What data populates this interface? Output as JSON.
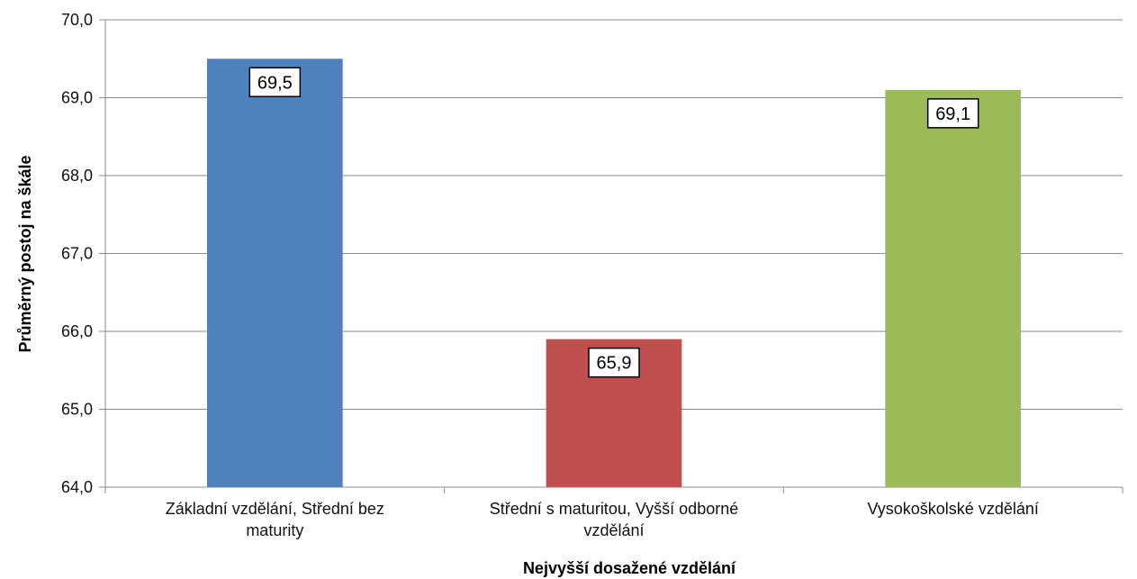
{
  "chart_data": {
    "type": "bar",
    "title": "",
    "xlabel": "Nejvyšší dosažené vzdělání",
    "ylabel": "Průměrný postoj na škále",
    "ylim": [
      64.0,
      70.0
    ],
    "yticks": [
      "64,0",
      "65,0",
      "66,0",
      "67,0",
      "68,0",
      "69,0",
      "70,0"
    ],
    "grid": true,
    "categories": [
      [
        "Základní vzdělání, Střední bez",
        "maturity"
      ],
      [
        "Střední s maturitou, Vyšší odborné",
        "vzdělání"
      ],
      [
        "Vysokoškolské vzdělání"
      ]
    ],
    "values": [
      69.5,
      65.9,
      69.1
    ],
    "value_labels": [
      "69,5",
      "65,9",
      "69,1"
    ],
    "colors": [
      "#4F81BD",
      "#C0504D",
      "#9BBB59"
    ]
  }
}
